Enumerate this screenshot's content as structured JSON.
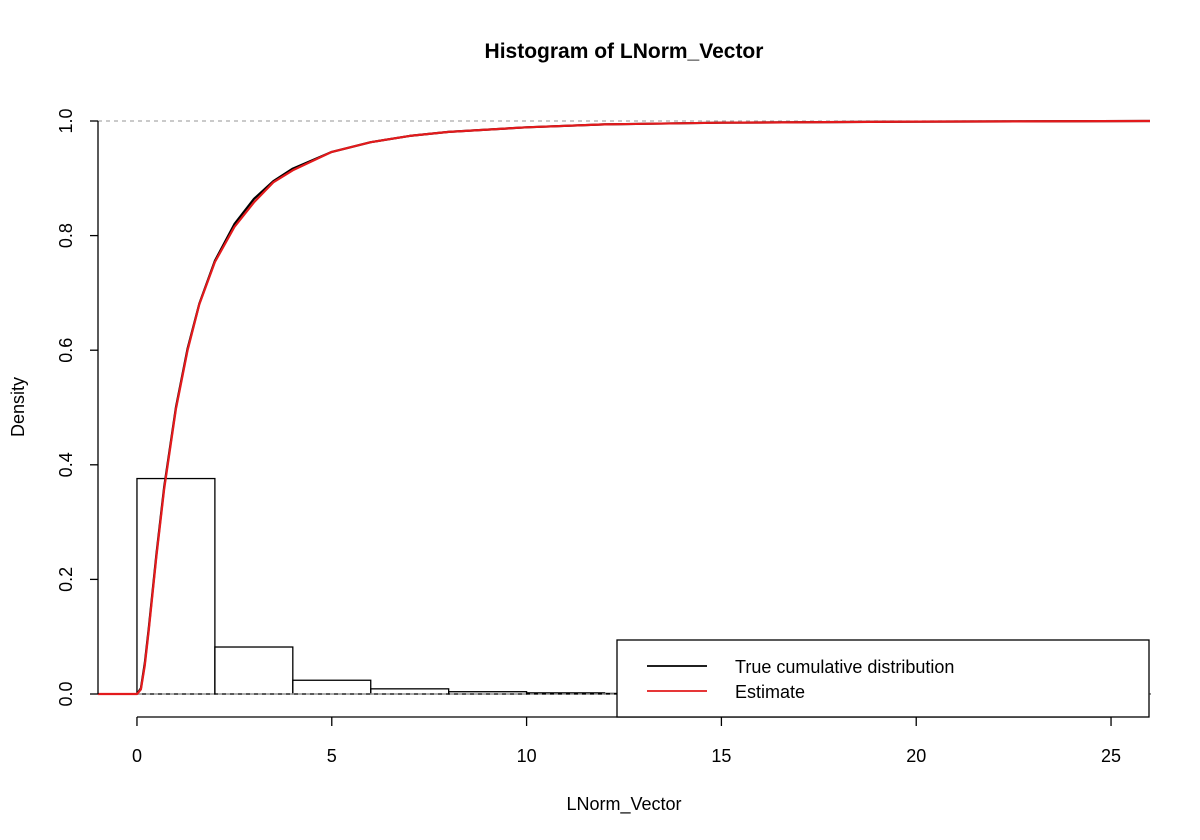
{
  "chart_data": {
    "type": "bar",
    "title": "Histogram of LNorm_Vector",
    "xlabel": "LNorm_Vector",
    "ylabel": "Density",
    "xlim": [
      -1,
      26
    ],
    "ylim": [
      0,
      1.0
    ],
    "x_ticks": [
      0,
      5,
      10,
      15,
      20,
      25
    ],
    "y_ticks": [
      "0.0",
      "0.2",
      "0.4",
      "0.6",
      "0.8",
      "1.0"
    ],
    "reference_lines": [
      0,
      1.0
    ],
    "histogram": {
      "bin_edges": [
        0,
        2,
        4,
        6,
        8,
        10,
        12,
        14,
        16,
        18,
        20,
        22,
        24,
        26
      ],
      "densities": [
        0.376,
        0.082,
        0.024,
        0.009,
        0.004,
        0.002,
        0.001,
        0.0006,
        0.0004,
        0.0003,
        0.0002,
        0.0001,
        0.0001
      ]
    },
    "series": [
      {
        "name": "True cumulative distribution",
        "color": "#000000",
        "x": [
          0,
          0.1,
          0.2,
          0.3,
          0.5,
          0.7,
          1.0,
          1.3,
          1.6,
          2.0,
          2.5,
          3.0,
          3.5,
          4.0,
          5.0,
          6.0,
          7.0,
          8.0,
          10.0,
          12.0,
          15.0,
          20.0,
          26.0
        ],
        "y": [
          0,
          0.01,
          0.054,
          0.114,
          0.244,
          0.362,
          0.5,
          0.603,
          0.681,
          0.756,
          0.82,
          0.864,
          0.895,
          0.917,
          0.946,
          0.963,
          0.974,
          0.981,
          0.989,
          0.994,
          0.997,
          0.999,
          1.0
        ]
      },
      {
        "name": "Estimate",
        "color": "#e31a1c",
        "x": [
          -1,
          0,
          0.1,
          0.2,
          0.3,
          0.5,
          0.7,
          1.0,
          1.3,
          1.6,
          2.0,
          2.5,
          3.0,
          3.5,
          4.0,
          5.0,
          6.0,
          7.0,
          8.0,
          10.0,
          12.0,
          15.0,
          20.0,
          26.0
        ],
        "y": [
          0,
          0,
          0.008,
          0.05,
          0.11,
          0.24,
          0.358,
          0.497,
          0.6,
          0.68,
          0.754,
          0.815,
          0.858,
          0.893,
          0.914,
          0.946,
          0.963,
          0.974,
          0.981,
          0.989,
          0.994,
          0.997,
          0.999,
          1.0
        ]
      }
    ],
    "legend": {
      "position": "bottom-right",
      "entries": [
        {
          "label": "True cumulative distribution",
          "color": "#000000"
        },
        {
          "label": "Estimate",
          "color": "#e31a1c"
        }
      ]
    }
  }
}
